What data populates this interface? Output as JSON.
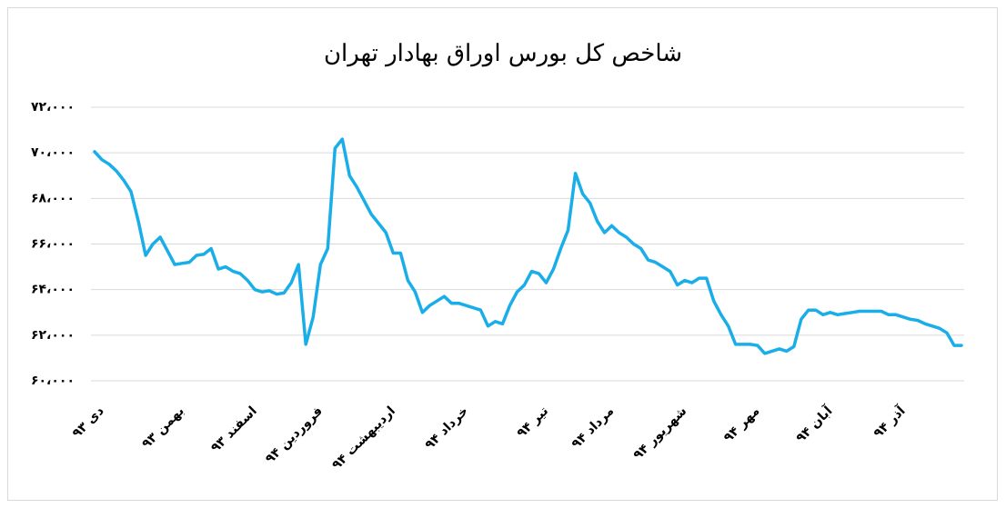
{
  "chart_data": {
    "type": "line",
    "title": "شاخص کل بورس اوراق بهادار تهران",
    "categories": [
      "دی ۹۳",
      null,
      null,
      null,
      null,
      null,
      null,
      null,
      null,
      null,
      null,
      "بهمن ۹۳",
      null,
      null,
      null,
      null,
      null,
      null,
      null,
      null,
      null,
      "اسفند ۹۳",
      null,
      null,
      null,
      null,
      null,
      null,
      null,
      null,
      "فروردین ۹۴",
      null,
      null,
      null,
      null,
      null,
      null,
      null,
      null,
      null,
      "اردیبهشت ۹۴",
      null,
      null,
      null,
      null,
      null,
      null,
      null,
      null,
      null,
      "خرداد ۹۴",
      null,
      null,
      null,
      null,
      null,
      null,
      null,
      null,
      null,
      null,
      "تیر ۹۴",
      null,
      null,
      null,
      null,
      null,
      null,
      null,
      null,
      "مرداد ۹۴",
      null,
      null,
      null,
      null,
      null,
      null,
      null,
      null,
      null,
      "شهریور ۹۴",
      null,
      null,
      null,
      null,
      null,
      null,
      null,
      null,
      null,
      "مهر ۹۴",
      null,
      null,
      null,
      null,
      null,
      null,
      null,
      null,
      null,
      "آبان ۹۴",
      null,
      null,
      null,
      null,
      null,
      null,
      null,
      null,
      null,
      "آذر ۹۴",
      null,
      null,
      null,
      null,
      null,
      null,
      null,
      null,
      null
    ],
    "values": [
      70050,
      69700,
      69500,
      69200,
      68800,
      68300,
      67000,
      65500,
      66000,
      66300,
      65700,
      65100,
      65150,
      65200,
      65500,
      65550,
      65800,
      64900,
      65000,
      64800,
      64700,
      64400,
      64000,
      63900,
      63950,
      63800,
      63850,
      64300,
      65100,
      61600,
      62800,
      65100,
      65800,
      70200,
      70600,
      69000,
      68500,
      67900,
      67300,
      66900,
      66500,
      65600,
      65600,
      64400,
      63900,
      63000,
      63300,
      63500,
      63700,
      63400,
      63400,
      63300,
      63200,
      63100,
      62400,
      62600,
      62500,
      63300,
      63900,
      64200,
      64800,
      64700,
      64300,
      64900,
      65800,
      66600,
      69100,
      68200,
      67800,
      67000,
      66500,
      66800,
      66500,
      66300,
      66000,
      65800,
      65300,
      65200,
      65000,
      64800,
      64200,
      64400,
      64300,
      64500,
      64500,
      63500,
      62900,
      62400,
      61600,
      61600,
      61600,
      61550,
      61200,
      61300,
      61400,
      61300,
      61500,
      62700,
      63100,
      63100,
      62900,
      63000,
      62900,
      62950,
      63000,
      63050,
      63050,
      63050,
      63050,
      62900,
      62900,
      62800,
      62700,
      62650,
      62500,
      62400,
      62300,
      62100,
      61550,
      61550
    ],
    "color": "#1aaee8",
    "ylim": [
      60000,
      72000
    ],
    "yticks": [
      {
        "value": 60000,
        "label": "۶۰،۰۰۰"
      },
      {
        "value": 62000,
        "label": "۶۲،۰۰۰"
      },
      {
        "value": 64000,
        "label": "۶۴،۰۰۰"
      },
      {
        "value": 66000,
        "label": "۶۶،۰۰۰"
      },
      {
        "value": 68000,
        "label": "۶۸،۰۰۰"
      },
      {
        "value": 70000,
        "label": "۷۰،۰۰۰"
      },
      {
        "value": 72000,
        "label": "۷۲،۰۰۰"
      }
    ],
    "grid": true
  }
}
